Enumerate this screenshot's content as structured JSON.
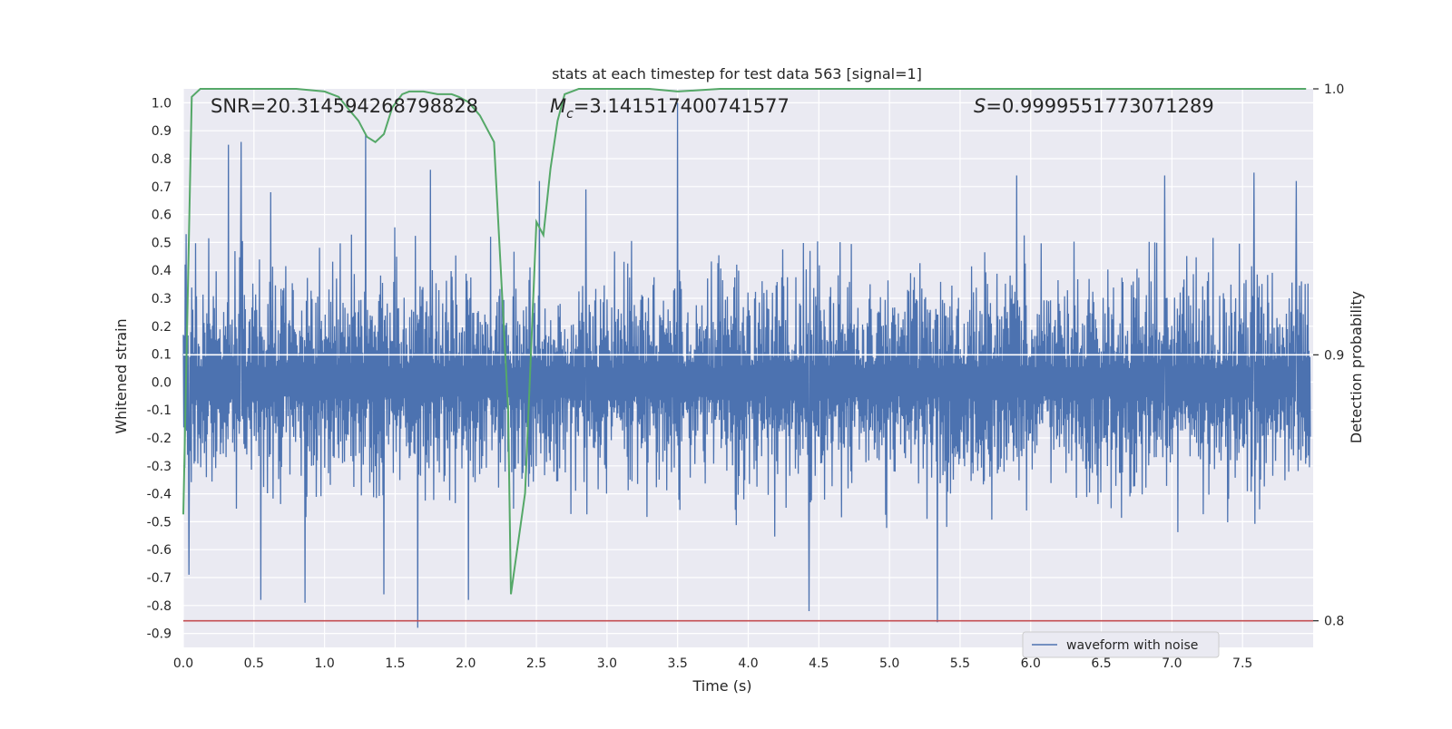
{
  "chart_data": {
    "type": "line",
    "title": "stats at each timestep for test data 563 [signal=1]",
    "xlabel": "Time (s)",
    "ylabel": "Whitened strain",
    "y2label": "Detection probability",
    "xlim": [
      0.0,
      8.0
    ],
    "ylim": [
      -0.95,
      1.05
    ],
    "y2lim": [
      0.79,
      1.0
    ],
    "xticks": [
      "0.0",
      "0.5",
      "1.0",
      "1.5",
      "2.0",
      "2.5",
      "3.0",
      "3.5",
      "4.0",
      "4.5",
      "5.0",
      "5.5",
      "6.0",
      "6.5",
      "7.0",
      "7.5"
    ],
    "yticks": [
      "1.0",
      "0.9",
      "0.8",
      "0.7",
      "0.6",
      "0.5",
      "0.4",
      "0.3",
      "0.2",
      "0.1",
      "0.0",
      "-0.1",
      "-0.2",
      "-0.3",
      "-0.4",
      "-0.5",
      "-0.6",
      "-0.7",
      "-0.8",
      "-0.9"
    ],
    "y2ticks": [
      "1.0",
      "0.9",
      "0.8"
    ],
    "grid": true,
    "legend_position": "lower-right",
    "stats_text": {
      "snr": "SNR=20.314594268798828",
      "mc_symbol": "M",
      "mc_sub": "c",
      "mc_value": "=3.141517400741577",
      "s_symbol": "S",
      "s_value": "=0.9999551773071289"
    },
    "series": [
      {
        "name": "waveform with noise",
        "color": "#4c72b0",
        "axis": "left",
        "description": "dense whitened noisy strain, roughly within ±0.45 with spikes",
        "spikes": [
          {
            "x": 0.02,
            "y": 0.53
          },
          {
            "x": 0.04,
            "y": -0.69
          },
          {
            "x": 0.32,
            "y": 0.85
          },
          {
            "x": 0.41,
            "y": 0.86
          },
          {
            "x": 0.55,
            "y": -0.78
          },
          {
            "x": 0.62,
            "y": 0.68
          },
          {
            "x": 0.86,
            "y": -0.79
          },
          {
            "x": 1.29,
            "y": 0.89
          },
          {
            "x": 1.42,
            "y": -0.76
          },
          {
            "x": 1.66,
            "y": -0.88
          },
          {
            "x": 1.75,
            "y": 0.76
          },
          {
            "x": 2.02,
            "y": -0.78
          },
          {
            "x": 2.52,
            "y": 0.72
          },
          {
            "x": 2.85,
            "y": 0.69
          },
          {
            "x": 3.5,
            "y": 1.0
          },
          {
            "x": 4.43,
            "y": -0.82
          },
          {
            "x": 5.34,
            "y": -0.86
          },
          {
            "x": 5.9,
            "y": 0.74
          },
          {
            "x": 6.95,
            "y": 0.74
          },
          {
            "x": 7.58,
            "y": 0.75
          },
          {
            "x": 7.88,
            "y": 0.72
          }
        ]
      },
      {
        "name": "",
        "color": "#55a868",
        "axis": "right",
        "x": [
          0.0,
          0.06,
          0.12,
          0.3,
          0.5,
          0.8,
          1.0,
          1.1,
          1.16,
          1.24,
          1.3,
          1.36,
          1.42,
          1.48,
          1.55,
          1.6,
          1.7,
          1.8,
          1.9,
          1.95,
          2.02,
          2.1,
          2.2,
          2.3,
          2.32,
          2.42,
          2.5,
          2.55,
          2.6,
          2.65,
          2.7,
          2.8,
          3.0,
          3.3,
          3.5,
          3.8,
          4.2,
          5.0,
          6.0,
          7.0,
          7.95
        ],
        "y": [
          0.84,
          0.997,
          1.0,
          1.0,
          1.0,
          1.0,
          0.999,
          0.997,
          0.993,
          0.988,
          0.982,
          0.98,
          0.983,
          0.993,
          0.998,
          0.999,
          0.999,
          0.998,
          0.998,
          0.997,
          0.995,
          0.99,
          0.98,
          0.88,
          0.81,
          0.848,
          0.95,
          0.945,
          0.97,
          0.988,
          0.998,
          1.0,
          1.0,
          1.0,
          0.999,
          1.0,
          1.0,
          1.0,
          1.0,
          1.0,
          1.0
        ]
      }
    ],
    "hlines": [
      {
        "axis": "right",
        "y": 0.9,
        "color": "#ffffff"
      },
      {
        "axis": "right",
        "y": 0.8,
        "color": "#c44e52"
      }
    ]
  }
}
